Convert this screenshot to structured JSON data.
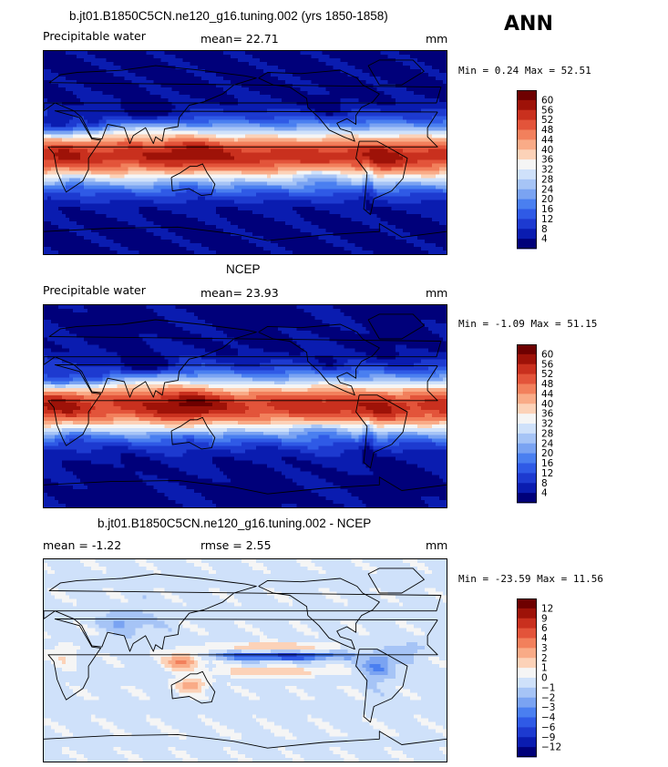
{
  "season": "ANN",
  "panels": [
    {
      "id": "model",
      "title": "b.jt01.B1850C5CN.ne120_g16.tuning.002 (yrs 1850-1858)",
      "left_label": "Precipitable water",
      "center_label": "mean=   22.71",
      "units": "mm",
      "minmax": "Min =    0.24 Max =   52.51"
    },
    {
      "id": "obs",
      "title": "NCEP",
      "left_label": "Precipitable water",
      "center_label": "mean=   23.93",
      "units": "mm",
      "minmax": "Min =   -1.09 Max =   51.15"
    },
    {
      "id": "diff",
      "title": "b.jt01.B1850C5CN.ne120_g16.tuning.002 - NCEP",
      "left_label": "mean =   -1.22",
      "center_label": "rmse =    2.55",
      "units": "mm",
      "minmax": "Min =  -23.59 Max =   11.56"
    }
  ],
  "chart_data": [
    {
      "type": "heatmap",
      "title": "b.jt01.B1850C5CN.ne120_g16.tuning.002 (yrs 1850-1858)",
      "variable": "Precipitable water",
      "units": "mm",
      "mean": 22.71,
      "min": 0.24,
      "max": 52.51,
      "colorbar_levels": [
        4,
        8,
        12,
        16,
        20,
        24,
        28,
        32,
        36,
        40,
        44,
        48,
        52,
        56,
        60
      ],
      "colorbar_labels": [
        "60",
        "56",
        "52",
        "48",
        "44",
        "40",
        "36",
        "32",
        "28",
        "24",
        "20",
        "16",
        "12",
        "8",
        "4"
      ],
      "colors": [
        "#00007a",
        "#0a1cb0",
        "#1d3ad0",
        "#2f5ae6",
        "#4a7ff0",
        "#7aa3f2",
        "#a6c4f6",
        "#cfe1fa",
        "#f5f5f5",
        "#fcd2b8",
        "#f9ab87",
        "#f2805c",
        "#e3543a",
        "#c9301e",
        "#9e1208",
        "#6e0000"
      ]
    },
    {
      "type": "heatmap",
      "title": "NCEP",
      "variable": "Precipitable water",
      "units": "mm",
      "mean": 23.93,
      "min": -1.09,
      "max": 51.15,
      "colorbar_levels": [
        4,
        8,
        12,
        16,
        20,
        24,
        28,
        32,
        36,
        40,
        44,
        48,
        52,
        56,
        60
      ],
      "colorbar_labels": [
        "60",
        "56",
        "52",
        "48",
        "44",
        "40",
        "36",
        "32",
        "28",
        "24",
        "20",
        "16",
        "12",
        "8",
        "4"
      ],
      "colors": [
        "#00007a",
        "#0a1cb0",
        "#1d3ad0",
        "#2f5ae6",
        "#4a7ff0",
        "#7aa3f2",
        "#a6c4f6",
        "#cfe1fa",
        "#f5f5f5",
        "#fcd2b8",
        "#f9ab87",
        "#f2805c",
        "#e3543a",
        "#c9301e",
        "#9e1208",
        "#6e0000"
      ]
    },
    {
      "type": "heatmap",
      "title": "b.jt01.B1850C5CN.ne120_g16.tuning.002 - NCEP",
      "units": "mm",
      "mean": -1.22,
      "rmse": 2.55,
      "min": -23.59,
      "max": 11.56,
      "colorbar_levels": [
        -12,
        -9,
        -6,
        -4,
        -3,
        -2,
        -1,
        0,
        1,
        2,
        3,
        4,
        6,
        9,
        12
      ],
      "colorbar_labels": [
        "12",
        "9",
        "6",
        "4",
        "3",
        "2",
        "1",
        "0",
        "−1",
        "−2",
        "−3",
        "−4",
        "−6",
        "−9",
        "−12"
      ],
      "colors": [
        "#00007a",
        "#0a1cb0",
        "#1d3ad0",
        "#2f5ae6",
        "#4a7ff0",
        "#7aa3f2",
        "#a6c4f6",
        "#cfe1fa",
        "#f5f5f5",
        "#fcd2b8",
        "#f9ab87",
        "#f2805c",
        "#e3543a",
        "#c9301e",
        "#9e1208",
        "#6e0000"
      ]
    }
  ]
}
